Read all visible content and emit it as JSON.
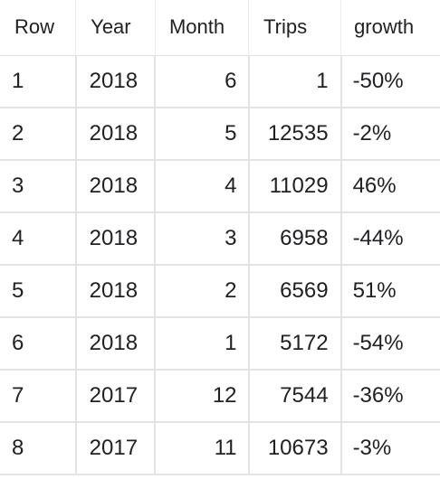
{
  "table": {
    "headers": [
      "Row",
      "Year",
      "Month",
      "Trips",
      "growth"
    ],
    "rows": [
      {
        "row": "1",
        "year": "2018",
        "month": "6",
        "trips": "1",
        "growth": "-50%"
      },
      {
        "row": "2",
        "year": "2018",
        "month": "5",
        "trips": "12535",
        "growth": "-2%"
      },
      {
        "row": "3",
        "year": "2018",
        "month": "4",
        "trips": "11029",
        "growth": "46%"
      },
      {
        "row": "4",
        "year": "2018",
        "month": "3",
        "trips": "6958",
        "growth": "-44%"
      },
      {
        "row": "5",
        "year": "2018",
        "month": "2",
        "trips": "6569",
        "growth": "51%"
      },
      {
        "row": "6",
        "year": "2018",
        "month": "1",
        "trips": "5172",
        "growth": "-54%"
      },
      {
        "row": "7",
        "year": "2017",
        "month": "12",
        "trips": "7544",
        "growth": "-36%"
      },
      {
        "row": "8",
        "year": "2017",
        "month": "11",
        "trips": "10673",
        "growth": "-3%"
      }
    ]
  }
}
